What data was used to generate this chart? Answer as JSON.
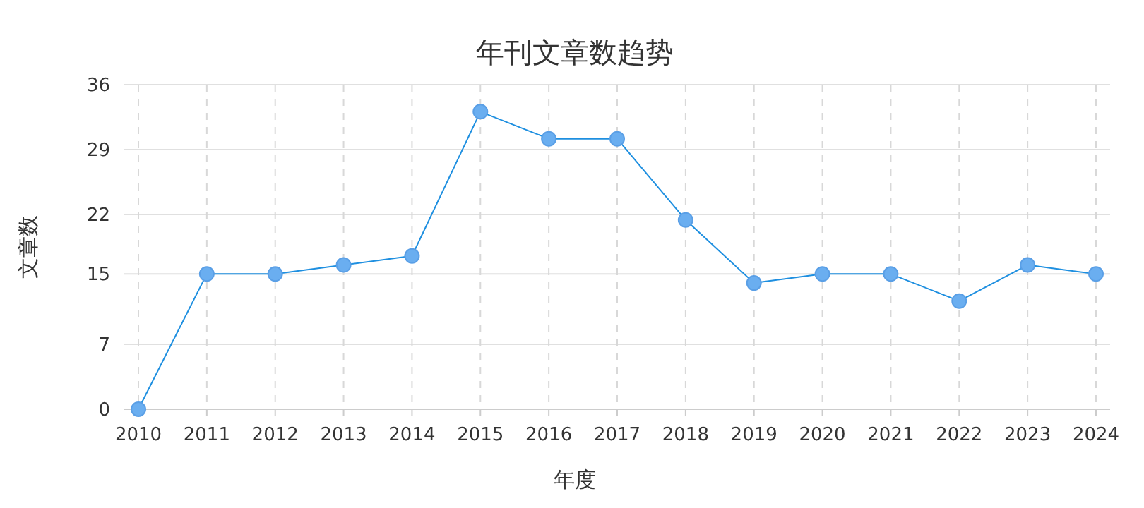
{
  "chart_data": {
    "type": "line",
    "title": "年刊文章数趋势",
    "xlabel": "年度",
    "ylabel": "文章数",
    "categories": [
      "2010",
      "2011",
      "2012",
      "2013",
      "2014",
      "2015",
      "2016",
      "2017",
      "2018",
      "2019",
      "2020",
      "2021",
      "2022",
      "2023",
      "2024"
    ],
    "series": [
      {
        "color": "#1e8fe0",
        "values": [
          0,
          15,
          15,
          16,
          17,
          33,
          30,
          30,
          21,
          14,
          15,
          15,
          12,
          16,
          15
        ]
      }
    ],
    "ylim": [
      0,
      36
    ],
    "yticks": [
      0,
      {
        "value": 7.2,
        "label": "7"
      },
      15,
      {
        "value": 21.6,
        "label": "22"
      },
      {
        "value": 28.8,
        "label": "29"
      },
      36
    ],
    "grid": true,
    "marker": "circle",
    "line_style": "solid"
  }
}
